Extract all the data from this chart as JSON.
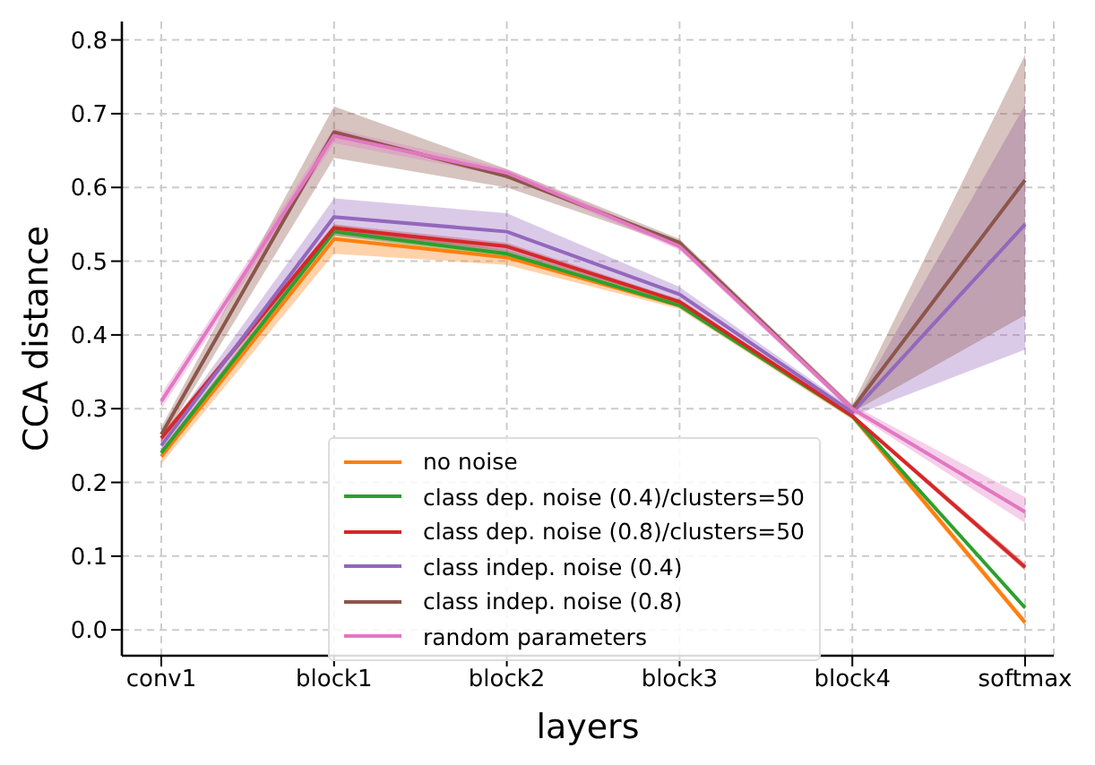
{
  "chart_data": {
    "type": "line",
    "xlabel": "layers",
    "ylabel": "CCA distance",
    "categories": [
      "conv1",
      "block1",
      "block2",
      "block3",
      "block4",
      "softmax"
    ],
    "series": [
      {
        "name": "no noise",
        "color": "#ff7f0e",
        "values": [
          0.235,
          0.53,
          0.505,
          0.44,
          0.29,
          0.01
        ],
        "lower": [
          0.225,
          0.51,
          0.495,
          0.435,
          0.285,
          0.005
        ],
        "upper": [
          0.245,
          0.55,
          0.515,
          0.445,
          0.295,
          0.015
        ]
      },
      {
        "name": "class dep. noise (0.4)/clusters=50",
        "color": "#2ca02c",
        "values": [
          0.24,
          0.54,
          0.51,
          0.44,
          0.29,
          0.03
        ],
        "lower": [
          0.235,
          0.535,
          0.505,
          0.437,
          0.287,
          0.027
        ],
        "upper": [
          0.245,
          0.545,
          0.515,
          0.443,
          0.293,
          0.033
        ]
      },
      {
        "name": "class dep. noise (0.8)/clusters=50",
        "color": "#d62728",
        "values": [
          0.26,
          0.545,
          0.52,
          0.445,
          0.29,
          0.085
        ],
        "lower": [
          0.255,
          0.54,
          0.515,
          0.442,
          0.287,
          0.08
        ],
        "upper": [
          0.265,
          0.55,
          0.525,
          0.448,
          0.293,
          0.09
        ]
      },
      {
        "name": "class indep. noise (0.4)",
        "color": "#9467bd",
        "values": [
          0.25,
          0.56,
          0.54,
          0.455,
          0.295,
          0.55
        ],
        "lower": [
          0.24,
          0.535,
          0.51,
          0.445,
          0.29,
          0.38
        ],
        "upper": [
          0.26,
          0.585,
          0.565,
          0.465,
          0.3,
          0.712
        ]
      },
      {
        "name": "class indep. noise (0.8)",
        "color": "#8c564b",
        "values": [
          0.265,
          0.675,
          0.615,
          0.525,
          0.3,
          0.61
        ],
        "lower": [
          0.255,
          0.64,
          0.6,
          0.52,
          0.295,
          0.427
        ],
        "upper": [
          0.275,
          0.71,
          0.625,
          0.53,
          0.305,
          0.78
        ]
      },
      {
        "name": "random parameters",
        "color": "#e377c2",
        "values": [
          0.31,
          0.67,
          0.62,
          0.52,
          0.3,
          0.16
        ],
        "lower": [
          0.3,
          0.66,
          0.615,
          0.515,
          0.295,
          0.145
        ],
        "upper": [
          0.32,
          0.68,
          0.625,
          0.525,
          0.305,
          0.18
        ]
      }
    ],
    "ylim": [
      -0.035,
      0.825
    ],
    "yticks": [
      {
        "value": 0,
        "label": "0.0"
      },
      {
        "value": 0.1,
        "label": "0.1"
      },
      {
        "value": 0.2,
        "label": "0.2"
      },
      {
        "value": 0.3,
        "label": "0.3"
      },
      {
        "value": 0.4,
        "label": "0.4"
      },
      {
        "value": 0.5,
        "label": "0.5"
      },
      {
        "value": 0.6,
        "label": "0.6"
      },
      {
        "value": 0.7,
        "label": "0.7"
      },
      {
        "value": 0.8,
        "label": "0.8"
      }
    ],
    "grid": true,
    "legend": "bottom",
    "line_style": "solid",
    "marker": "none"
  }
}
